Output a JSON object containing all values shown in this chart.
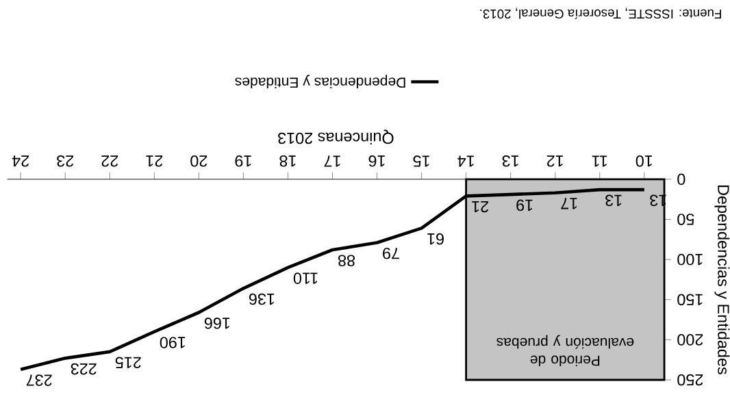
{
  "chart_data": {
    "type": "line",
    "xlabel": "Quincenas 2013",
    "ylabel": "Dependencias y Entidades",
    "x": [
      10,
      11,
      12,
      13,
      14,
      15,
      16,
      17,
      18,
      19,
      20,
      21,
      22,
      23,
      24
    ],
    "series": [
      {
        "name": "Dependencias y Entidades",
        "color": "#000000",
        "values": [
          13,
          13,
          17,
          19,
          21,
          61,
          79,
          88,
          110,
          136,
          166,
          190,
          215,
          223,
          237
        ]
      }
    ],
    "xlim": [
      24.3,
      9.55
    ],
    "xticks": [
      10,
      11,
      12,
      13,
      14,
      15,
      16,
      17,
      18,
      19,
      20,
      21,
      22,
      23,
      24
    ],
    "ylim": [
      250,
      0
    ],
    "yticks": [
      0,
      50,
      100,
      150,
      200,
      250
    ],
    "bands": [
      {
        "axis": "x",
        "from": 9.55,
        "to": 14,
        "label": "Periodo de evaluación y pruebas",
        "color": "#c4c4c4"
      }
    ],
    "data_labels": true,
    "grid": false,
    "legend": "top",
    "marker": "none",
    "line_style": "solid",
    "annotations": [
      "Fuente: ISSSTE, Tesorería General, 2013."
    ]
  }
}
